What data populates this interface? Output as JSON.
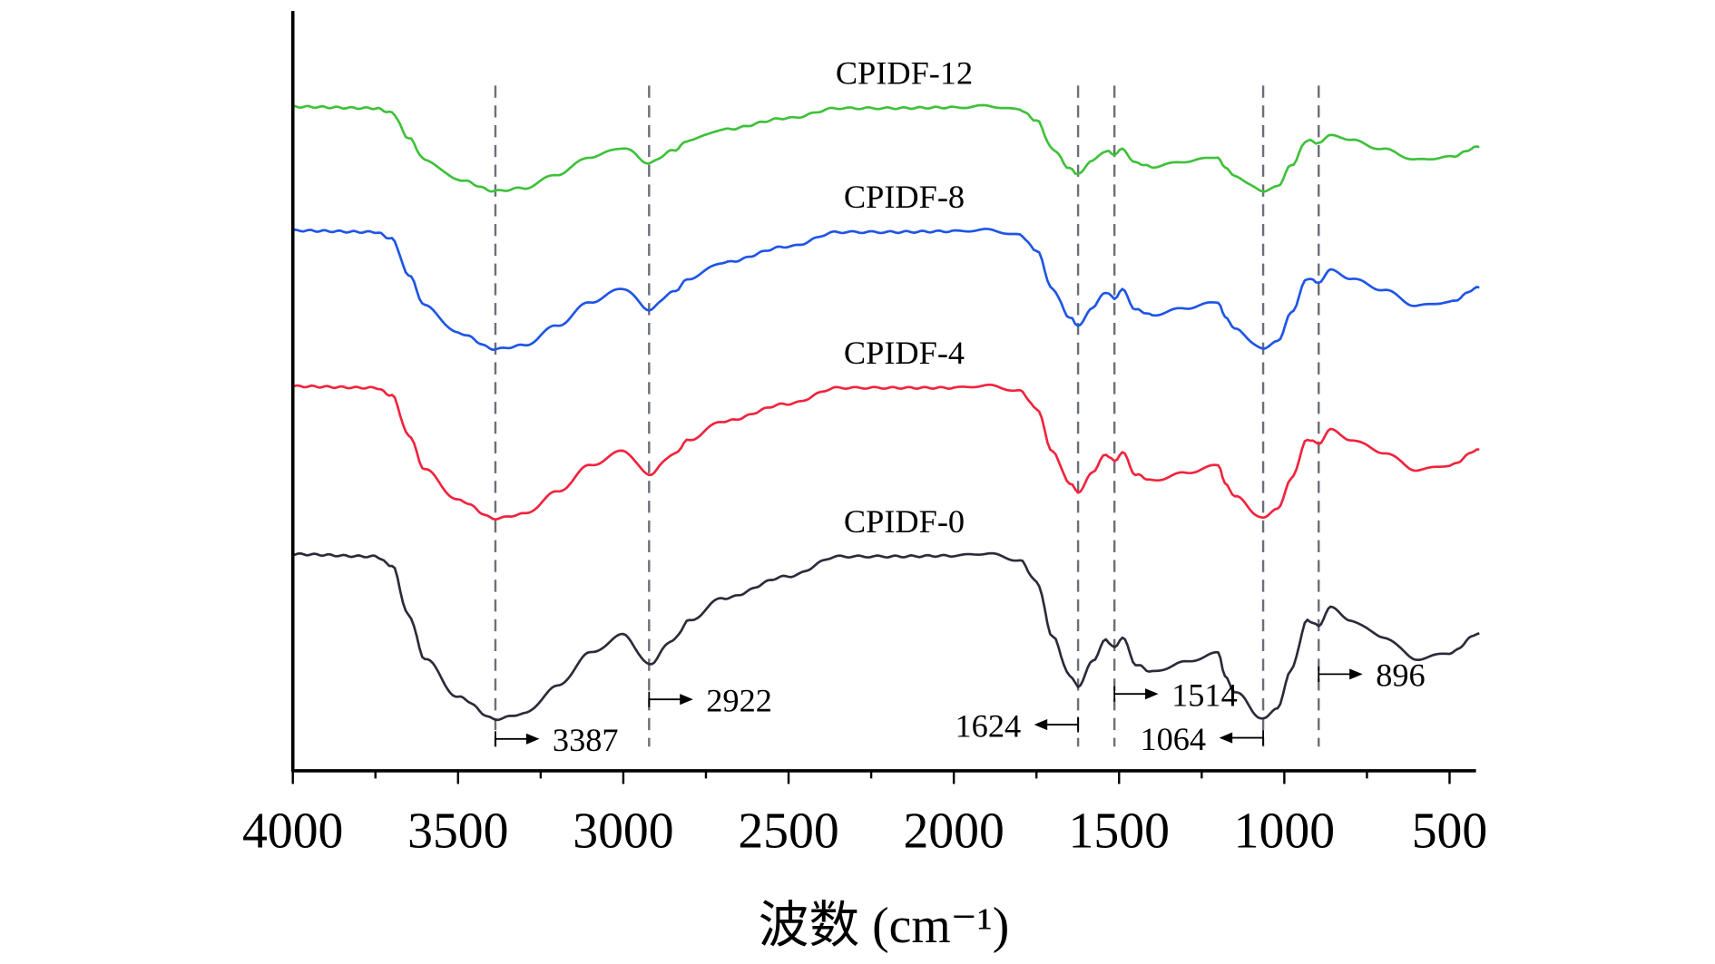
{
  "chart_data": {
    "type": "line",
    "title": "",
    "xlabel": "波数 (cm⁻¹)",
    "ylabel": "",
    "xlim": [
      4000,
      410
    ],
    "ylim": [
      0,
      100
    ],
    "x_reversed": true,
    "grid": false,
    "xticks": [
      4000,
      3500,
      3000,
      2500,
      2000,
      1500,
      1000,
      500
    ],
    "xtick_labels": [
      "4000",
      "3500",
      "3000",
      "2500",
      "2000",
      "1500",
      "1000",
      "500"
    ],
    "minor_tick_step": 250,
    "x": [
      4000,
      3750,
      3700,
      3650,
      3600,
      3500,
      3387,
      3300,
      3200,
      3100,
      3000,
      2922,
      2850,
      2800,
      2700,
      2500,
      2350,
      2200,
      2000,
      1900,
      1800,
      1750,
      1700,
      1650,
      1624,
      1580,
      1540,
      1514,
      1490,
      1450,
      1400,
      1300,
      1200,
      1180,
      1150,
      1064,
      1020,
      980,
      930,
      896,
      860,
      800,
      700,
      600,
      500,
      410
    ],
    "series": [
      {
        "name": "CPIDF-12",
        "color": "#3fc13a",
        "values": [
          87.4,
          87.2,
          86.6,
          83.3,
          80.4,
          77.8,
          76.3,
          76.7,
          78.5,
          80.8,
          82.0,
          80.0,
          81.6,
          83.0,
          84.4,
          85.9,
          87.2,
          87.2,
          87.3,
          87.5,
          87.0,
          85.6,
          81.8,
          79.3,
          78.5,
          80.3,
          81.6,
          81.1,
          81.8,
          80.0,
          79.5,
          80.2,
          80.8,
          79.3,
          78.2,
          76.3,
          77.0,
          79.6,
          83.0,
          82.6,
          83.8,
          83.0,
          81.8,
          80.4,
          80.8,
          82.1
        ]
      },
      {
        "name": "CPIDF-8",
        "color": "#1f55e6",
        "values": [
          71.1,
          70.9,
          70.0,
          65.3,
          61.2,
          57.6,
          55.5,
          56.0,
          58.6,
          61.7,
          63.5,
          60.7,
          63.0,
          64.8,
          66.9,
          69.0,
          70.9,
          70.9,
          71.0,
          71.2,
          70.5,
          68.5,
          63.3,
          59.7,
          58.6,
          61.0,
          63.0,
          62.2,
          63.3,
          60.7,
          60.0,
          60.9,
          61.7,
          59.7,
          58.1,
          55.5,
          56.5,
          60.2,
          64.8,
          64.3,
          66.1,
          64.8,
          63.3,
          61.2,
          61.7,
          63.6
        ]
      },
      {
        "name": "CPIDF-4",
        "color": "#f0243e",
        "values": [
          50.6,
          50.4,
          49.4,
          44.2,
          39.6,
          35.6,
          33.2,
          33.8,
          36.7,
          40.2,
          42.1,
          39.0,
          41.6,
          43.6,
          46.0,
          48.3,
          50.4,
          50.4,
          50.4,
          50.7,
          50.0,
          47.7,
          41.9,
          37.9,
          36.7,
          39.4,
          41.6,
          40.8,
          41.9,
          39.0,
          38.2,
          39.2,
          40.2,
          37.9,
          36.1,
          33.2,
          34.4,
          38.4,
          43.6,
          43.1,
          45.0,
          43.6,
          41.9,
          39.6,
          40.2,
          42.3
        ]
      },
      {
        "name": "CPIDF-0",
        "color": "#2d2b3a",
        "values": [
          28.5,
          28.2,
          27.0,
          20.5,
          14.7,
          9.7,
          6.8,
          7.5,
          11.1,
          15.5,
          17.9,
          14.0,
          17.2,
          19.8,
          22.7,
          25.6,
          28.2,
          28.2,
          28.3,
          28.6,
          27.7,
          24.9,
          17.6,
          12.6,
          11.1,
          14.5,
          17.2,
          16.2,
          17.6,
          14.0,
          13.0,
          14.3,
          15.5,
          12.6,
          10.4,
          6.8,
          8.2,
          13.3,
          19.8,
          19.1,
          21.5,
          19.8,
          17.6,
          14.7,
          15.5,
          18.1
        ]
      }
    ],
    "reference_lines": [
      3387,
      2922,
      1624,
      1514,
      1064,
      896
    ],
    "annotations": [
      {
        "label": "3387",
        "at": 3387,
        "direction": "right"
      },
      {
        "label": "2922",
        "at": 2922,
        "direction": "right"
      },
      {
        "label": "1624",
        "at": 1624,
        "direction": "left"
      },
      {
        "label": "1514",
        "at": 1514,
        "direction": "right"
      },
      {
        "label": "1064",
        "at": 1064,
        "direction": "left"
      },
      {
        "label": "896",
        "at": 896,
        "direction": "right"
      }
    ]
  }
}
